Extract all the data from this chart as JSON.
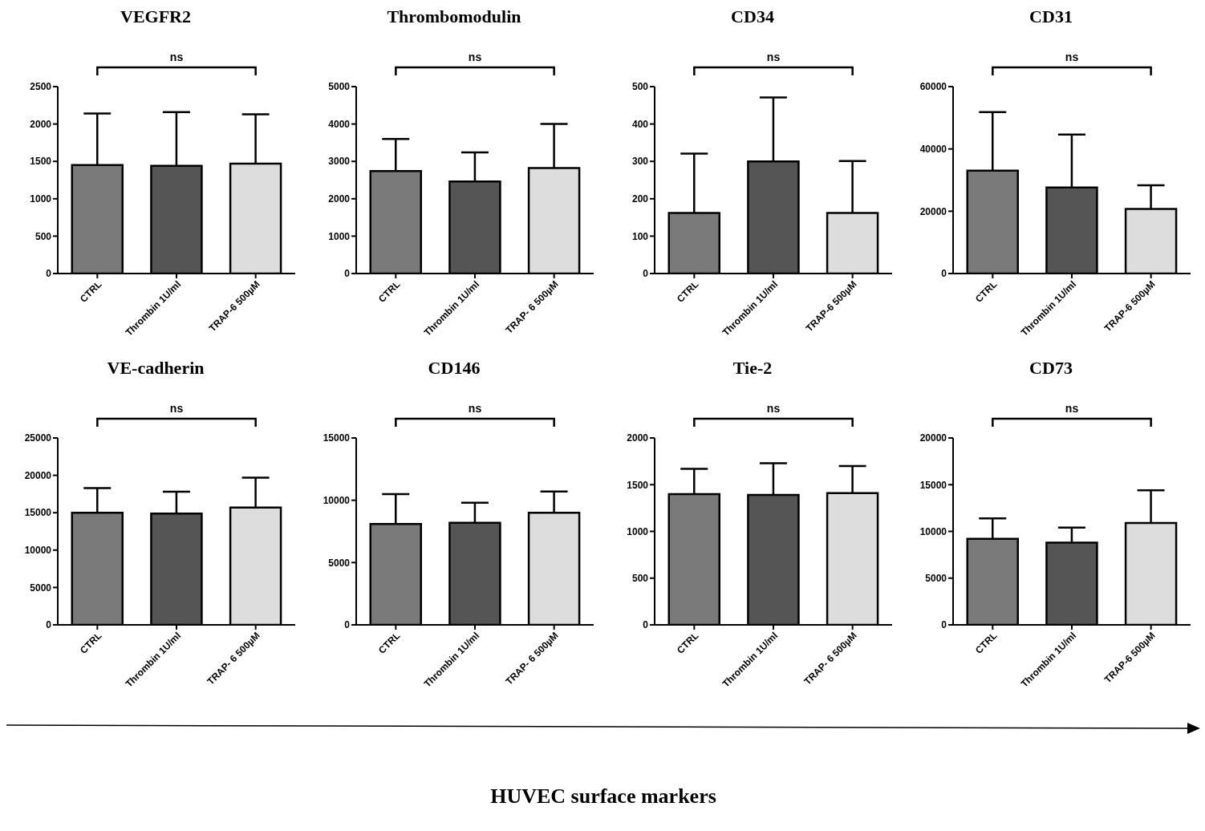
{
  "chart_data": [
    {
      "type": "bar",
      "title": "VEGFR2",
      "categories": [
        "CTRL",
        "Thrombin 1U/ml",
        "TRAP-6 500µM"
      ],
      "values": [
        1450,
        1440,
        1470
      ],
      "errors": [
        [
          1450,
          2140
        ],
        [
          1440,
          2160
        ],
        [
          1470,
          2130
        ]
      ],
      "colors": [
        "#7a7a7a",
        "#555555",
        "#dddddd"
      ],
      "ylim": [
        0,
        2500
      ],
      "yticks": [
        0,
        500,
        1000,
        1500,
        2000,
        2500
      ],
      "annotations": [
        "ns"
      ]
    },
    {
      "type": "bar",
      "title": "Thrombomodulin",
      "categories": [
        "CTRL",
        "Thrombin 1U/ml",
        "TRAP- 6 500µM"
      ],
      "values": [
        2740,
        2460,
        2820
      ],
      "errors": [
        [
          2740,
          3600
        ],
        [
          2460,
          3240
        ],
        [
          2820,
          4000
        ]
      ],
      "colors": [
        "#7a7a7a",
        "#555555",
        "#dddddd"
      ],
      "ylim": [
        0,
        5000
      ],
      "yticks": [
        0,
        1000,
        2000,
        3000,
        4000,
        5000
      ],
      "annotations": [
        "ns"
      ]
    },
    {
      "type": "bar",
      "title": "CD34",
      "categories": [
        "CTRL",
        "Thrombin 1U/ml",
        "TRAP-6 500µM"
      ],
      "values": [
        162,
        300,
        162
      ],
      "errors": [
        [
          162,
          321
        ],
        [
          300,
          471
        ],
        [
          162,
          301
        ]
      ],
      "colors": [
        "#7a7a7a",
        "#555555",
        "#dddddd"
      ],
      "ylim": [
        0,
        500
      ],
      "yticks": [
        0,
        100,
        200,
        300,
        400,
        500
      ],
      "annotations": [
        "ns"
      ]
    },
    {
      "type": "bar",
      "title": "CD31",
      "categories": [
        "CTRL",
        "Thrombin 1U/ml",
        "TRAP-6 500µM"
      ],
      "values": [
        33000,
        27600,
        20700
      ],
      "errors": [
        [
          33000,
          51800
        ],
        [
          27600,
          44600
        ],
        [
          20700,
          28300
        ]
      ],
      "colors": [
        "#7a7a7a",
        "#555555",
        "#dddddd"
      ],
      "ylim": [
        0,
        60000
      ],
      "yticks": [
        0,
        20000,
        40000,
        60000
      ],
      "annotations": [
        "ns"
      ]
    },
    {
      "type": "bar",
      "title": "VE-cadherin",
      "categories": [
        "CTRL",
        "Thrombin 1U/ml",
        "TRAP- 6 500µM"
      ],
      "values": [
        15000,
        14900,
        15700
      ],
      "errors": [
        [
          15000,
          18300
        ],
        [
          14900,
          17800
        ],
        [
          15700,
          19700
        ]
      ],
      "colors": [
        "#7a7a7a",
        "#555555",
        "#dddddd"
      ],
      "ylim": [
        0,
        25000
      ],
      "yticks": [
        0,
        5000,
        10000,
        15000,
        20000,
        25000
      ],
      "annotations": [
        "ns"
      ]
    },
    {
      "type": "bar",
      "title": "CD146",
      "categories": [
        "CTRL",
        "Thrombin 1U/ml",
        "TRAP- 6 500µM"
      ],
      "values": [
        8100,
        8200,
        9000
      ],
      "errors": [
        [
          8100,
          10500
        ],
        [
          8200,
          9800
        ],
        [
          9000,
          10700
        ]
      ],
      "colors": [
        "#7a7a7a",
        "#555555",
        "#dddddd"
      ],
      "ylim": [
        0,
        15000
      ],
      "yticks": [
        0,
        5000,
        10000,
        15000
      ],
      "annotations": [
        "ns"
      ]
    },
    {
      "type": "bar",
      "title": "Tie-2",
      "categories": [
        "CTRL",
        "Thrombin 1U/ml",
        "TRAP- 6 500µM"
      ],
      "values": [
        1400,
        1390,
        1410
      ],
      "errors": [
        [
          1400,
          1670
        ],
        [
          1390,
          1730
        ],
        [
          1410,
          1700
        ]
      ],
      "colors": [
        "#7a7a7a",
        "#555555",
        "#dddddd"
      ],
      "ylim": [
        0,
        2000
      ],
      "yticks": [
        0,
        500,
        1000,
        1500,
        2000
      ],
      "annotations": [
        "ns"
      ]
    },
    {
      "type": "bar",
      "title": "CD73",
      "categories": [
        "CTRL",
        "Thrombin 1U/ml",
        "TRAP-6 500µM"
      ],
      "values": [
        9200,
        8800,
        10900
      ],
      "errors": [
        [
          9200,
          11400
        ],
        [
          8800,
          10400
        ],
        [
          10900,
          14400
        ]
      ],
      "colors": [
        "#7a7a7a",
        "#555555",
        "#dddddd"
      ],
      "ylim": [
        0,
        20000
      ],
      "yticks": [
        0,
        5000,
        10000,
        15000,
        20000
      ],
      "annotations": [
        "ns"
      ]
    },
    {
      "type": "other",
      "title": "HUVEC surface markers"
    }
  ]
}
